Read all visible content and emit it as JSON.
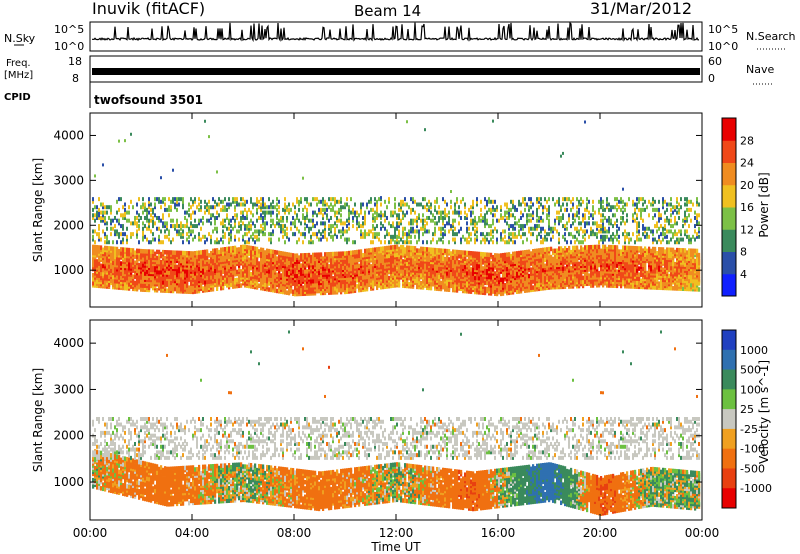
{
  "header": {
    "site": "Inuvik (fitACF)",
    "beam": "Beam 14",
    "date": "31/Mar/2012"
  },
  "left_labels": {
    "nsky": "N.Sky",
    "freq": "Freq.",
    "mhz": "[MHz]",
    "cpid": "CPID"
  },
  "right_labels": {
    "nsearch": "N.Search",
    "nave": "Nave"
  },
  "cpid_name": "twofsound 3501",
  "noise_panel": {
    "ticks_left": [
      "10^5",
      "10^0"
    ],
    "ticks_right": [
      "10^5",
      "10^0"
    ]
  },
  "freq_panel": {
    "ticks_left": [
      "18",
      "8"
    ],
    "ticks_right": [
      "60",
      "0"
    ]
  },
  "power_colorbar": {
    "title": "Power [dB]",
    "ticks": [
      "4",
      "8",
      "12",
      "16",
      "20",
      "24",
      "28"
    ],
    "colors": [
      "#1020ff",
      "#2a4fa8",
      "#3a8a5c",
      "#7cc046",
      "#f0c020",
      "#f08c20",
      "#f04818",
      "#e80000"
    ]
  },
  "velocity_colorbar": {
    "title": "Velocity [m s^-1]",
    "ticks": [
      "1000",
      "500",
      "100",
      "25",
      "-25",
      "-100",
      "-500",
      "-1000"
    ],
    "colors": [
      "#2040c0",
      "#2f70b0",
      "#3a8a5c",
      "#6cc040",
      "#c8c8c0",
      "#f0a020",
      "#f07010",
      "#e84010",
      "#e80000"
    ]
  },
  "y_axis_label": "Slant Range [km]",
  "x_axis_label": "Time UT",
  "chart_data": {
    "type": "heatmap",
    "x_ticks": [
      "00:00",
      "04:00",
      "08:00",
      "12:00",
      "16:00",
      "20:00",
      "00:00"
    ],
    "xlim_hours": [
      0,
      24
    ],
    "y_ticks": [
      "1000",
      "2000",
      "3000",
      "4000"
    ],
    "ylim_km": [
      180,
      4500
    ],
    "panels": [
      "Power",
      "Velocity"
    ],
    "power_main_band": [
      {
        "t": 0,
        "range": 1100,
        "dB": 24
      },
      {
        "t": 2,
        "range": 1000,
        "dB": 26
      },
      {
        "t": 4,
        "range": 950,
        "dB": 27
      },
      {
        "t": 6,
        "range": 1100,
        "dB": 24
      },
      {
        "t": 8,
        "range": 900,
        "dB": 27
      },
      {
        "t": 10,
        "range": 950,
        "dB": 26
      },
      {
        "t": 12,
        "range": 1100,
        "dB": 24
      },
      {
        "t": 14,
        "range": 1000,
        "dB": 25
      },
      {
        "t": 16,
        "range": 900,
        "dB": 27
      },
      {
        "t": 18,
        "range": 1050,
        "dB": 25
      },
      {
        "t": 20,
        "range": 1100,
        "dB": 26
      },
      {
        "t": 22,
        "range": 1050,
        "dB": 25
      },
      {
        "t": 24,
        "range": 1000,
        "dB": 22
      }
    ],
    "velocity_main_band": [
      {
        "t": 0,
        "range": 1300,
        "v": -25
      },
      {
        "t": 3,
        "range": 900,
        "v": -300
      },
      {
        "t": 6,
        "range": 1000,
        "v": 80
      },
      {
        "t": 9,
        "range": 800,
        "v": -300
      },
      {
        "t": 12,
        "range": 1000,
        "v": 30
      },
      {
        "t": 15,
        "range": 800,
        "v": -400
      },
      {
        "t": 18,
        "range": 1000,
        "v": 700
      },
      {
        "t": 20,
        "range": 700,
        "v": -500
      },
      {
        "t": 22,
        "range": 900,
        "v": 100
      },
      {
        "t": 24,
        "range": 800,
        "v": 60
      }
    ]
  }
}
